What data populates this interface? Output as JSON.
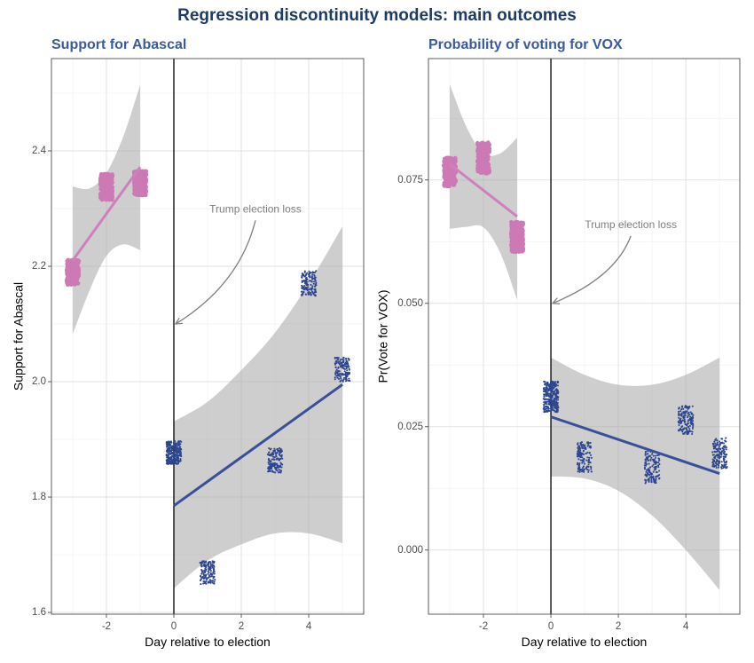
{
  "title": "Regression discontinuity models: main outcomes",
  "colors": {
    "title": "#1f3b63",
    "subtitle": "#3b5aa0",
    "pre_election": "#cc79b5",
    "post_election": "#2e4690",
    "fit_pre": "#d07fbe",
    "fit_post": "#3a4f9a",
    "band": "#a6a6a6",
    "annotation": "#7f7f7f",
    "cutoff": "#000000"
  },
  "chart_data": [
    {
      "type": "scatter",
      "title": "Support for Abascal",
      "xlabel": "Day relative to election",
      "ylabel": "Support for Abascal",
      "xlim": [
        -3.63,
        5.63
      ],
      "ylim": [
        1.597,
        2.56
      ],
      "xticks": [
        -2,
        0,
        2,
        4
      ],
      "xtick_labels": [
        "-2",
        "0",
        "2",
        "4"
      ],
      "yticks": [
        1.6,
        1.8,
        2.0,
        2.2,
        2.4
      ],
      "ytick_labels": [
        "1.6",
        "1.8",
        "2.0",
        "2.2",
        "2.4"
      ],
      "grid": true,
      "cutoff_x": 0,
      "pre_election": {
        "point_clusters": [
          {
            "x": -3,
            "y_min": 2.168,
            "y_max": 2.211
          },
          {
            "x": -2,
            "y_min": 2.315,
            "y_max": 2.36
          },
          {
            "x": -1,
            "y_min": 2.323,
            "y_max": 2.365
          }
        ],
        "fit": {
          "x": [
            -3,
            -1
          ],
          "y": [
            2.21,
            2.372
          ]
        },
        "band": {
          "x": [
            -3,
            -2.5,
            -2,
            -1.5,
            -1
          ],
          "lower": [
            2.082,
            2.158,
            2.218,
            2.238,
            2.228
          ],
          "upper": [
            2.338,
            2.335,
            2.362,
            2.425,
            2.514
          ]
        }
      },
      "post_election": {
        "point_clusters": [
          {
            "x": 0,
            "y_min": 1.857,
            "y_max": 1.897
          },
          {
            "x": 1,
            "y_min": 1.649,
            "y_max": 1.689
          },
          {
            "x": 3,
            "y_min": 1.842,
            "y_max": 1.885
          },
          {
            "x": 4,
            "y_min": 2.149,
            "y_max": 2.192
          },
          {
            "x": 5,
            "y_min": 2.0,
            "y_max": 2.042
          }
        ],
        "fit": {
          "x": [
            0,
            5
          ],
          "y": [
            1.785,
            1.995
          ]
        },
        "band": {
          "x": [
            0,
            1,
            2,
            3,
            4,
            5
          ],
          "lower": [
            1.642,
            1.69,
            1.718,
            1.737,
            1.737,
            1.72
          ],
          "upper": [
            1.931,
            1.965,
            2.02,
            2.085,
            2.17,
            2.269
          ]
        }
      },
      "annotation": {
        "text": "Trump election loss",
        "x": 2.42,
        "y": 2.298,
        "arrow_to": [
          0.05,
          2.1
        ]
      }
    },
    {
      "type": "scatter",
      "title": "Probability of voting for VOX",
      "xlabel": "Day relative to election",
      "ylabel": "Pr(Vote for VOX)",
      "xlim": [
        -3.63,
        5.6
      ],
      "ylim": [
        -0.013,
        0.0996
      ],
      "xticks": [
        -2,
        0,
        2,
        4
      ],
      "xtick_labels": [
        "-2",
        "0",
        "2",
        "4"
      ],
      "yticks": [
        0.0,
        0.025,
        0.05,
        0.075
      ],
      "ytick_labels": [
        "0.000",
        "0.025",
        "0.050",
        "0.075"
      ],
      "grid": true,
      "cutoff_x": 0,
      "pre_election": {
        "point_clusters": [
          {
            "x": -3,
            "y_min": 0.0737,
            "y_max": 0.0795
          },
          {
            "x": -2,
            "y_min": 0.0763,
            "y_max": 0.0826
          },
          {
            "x": -1,
            "y_min": 0.0604,
            "y_max": 0.0665
          }
        ],
        "fit": {
          "x": [
            -3,
            -1
          ],
          "y": [
            0.0782,
            0.0676
          ]
        },
        "band": {
          "x": [
            -3,
            -2.5,
            -2,
            -1.5,
            -1
          ],
          "lower": [
            0.0651,
            0.0655,
            0.0654,
            0.0602,
            0.0507
          ],
          "upper": [
            0.0944,
            0.0857,
            0.0804,
            0.0804,
            0.0836
          ]
        }
      },
      "post_election": {
        "point_clusters": [
          {
            "x": 0,
            "y_min": 0.0279,
            "y_max": 0.0342
          },
          {
            "x": 1,
            "y_min": 0.0158,
            "y_max": 0.0219
          },
          {
            "x": 3,
            "y_min": 0.0135,
            "y_max": 0.0201
          },
          {
            "x": 4,
            "y_min": 0.0234,
            "y_max": 0.0293
          },
          {
            "x": 5,
            "y_min": 0.0165,
            "y_max": 0.0227
          }
        ],
        "fit": {
          "x": [
            0,
            5
          ],
          "y": [
            0.027,
            0.0155
          ]
        },
        "band": {
          "x": [
            0,
            1,
            2,
            3,
            4,
            5
          ],
          "lower": [
            0.0149,
            0.0145,
            0.012,
            0.007,
            0.0,
            -0.0081
          ],
          "upper": [
            0.039,
            0.0355,
            0.0335,
            0.0335,
            0.0355,
            0.039
          ]
        }
      },
      "annotation": {
        "text": "Trump election loss",
        "x": 2.37,
        "y": 0.0658,
        "arrow_to": [
          0.05,
          0.05
        ]
      }
    }
  ]
}
